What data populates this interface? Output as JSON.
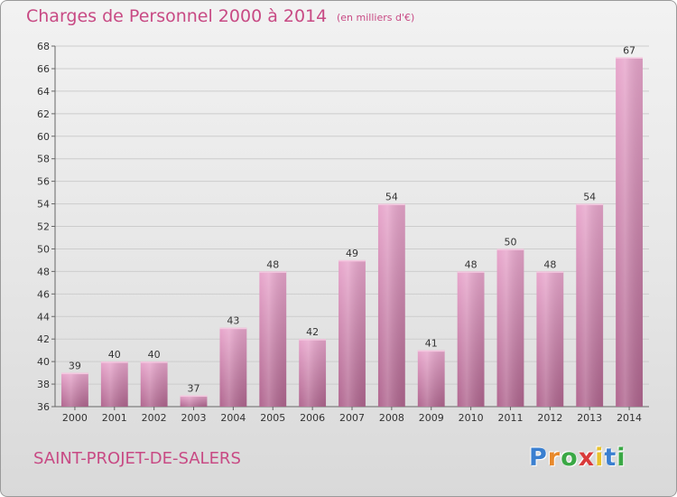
{
  "header": {
    "title": "Charges de Personnel 2000 à 2014",
    "subtitle": "(en milliers d'€)"
  },
  "footer": {
    "location": "SAINT-PROJET-DE-SALERS",
    "logo_letters": [
      "P",
      "r",
      "o",
      "x",
      "i",
      "t",
      "i"
    ],
    "logo_colors": [
      "#3a7fd0",
      "#e8892b",
      "#3aa845",
      "#d93a3a",
      "#e8c12b",
      "#3a7fd0",
      "#3aa845"
    ]
  },
  "colors": {
    "bar_top": "#e8a6cc",
    "bar_bottom": "#b0668f",
    "grid": "#cccccc",
    "accent": "#c84a84"
  },
  "chart_data": {
    "type": "bar",
    "title": "Charges de Personnel 2000 à 2014",
    "subtitle": "(en milliers d'€)",
    "categories": [
      "2000",
      "2001",
      "2002",
      "2003",
      "2004",
      "2005",
      "2006",
      "2007",
      "2008",
      "2009",
      "2010",
      "2011",
      "2012",
      "2013",
      "2014"
    ],
    "values": [
      39,
      40,
      40,
      37,
      43,
      48,
      42,
      49,
      54,
      41,
      48,
      50,
      48,
      54,
      67
    ],
    "ylim": [
      36,
      68
    ],
    "yticks": [
      36,
      38,
      40,
      42,
      44,
      46,
      48,
      50,
      52,
      54,
      56,
      58,
      60,
      62,
      64,
      66,
      68
    ],
    "grid": true,
    "data_labels": true
  }
}
